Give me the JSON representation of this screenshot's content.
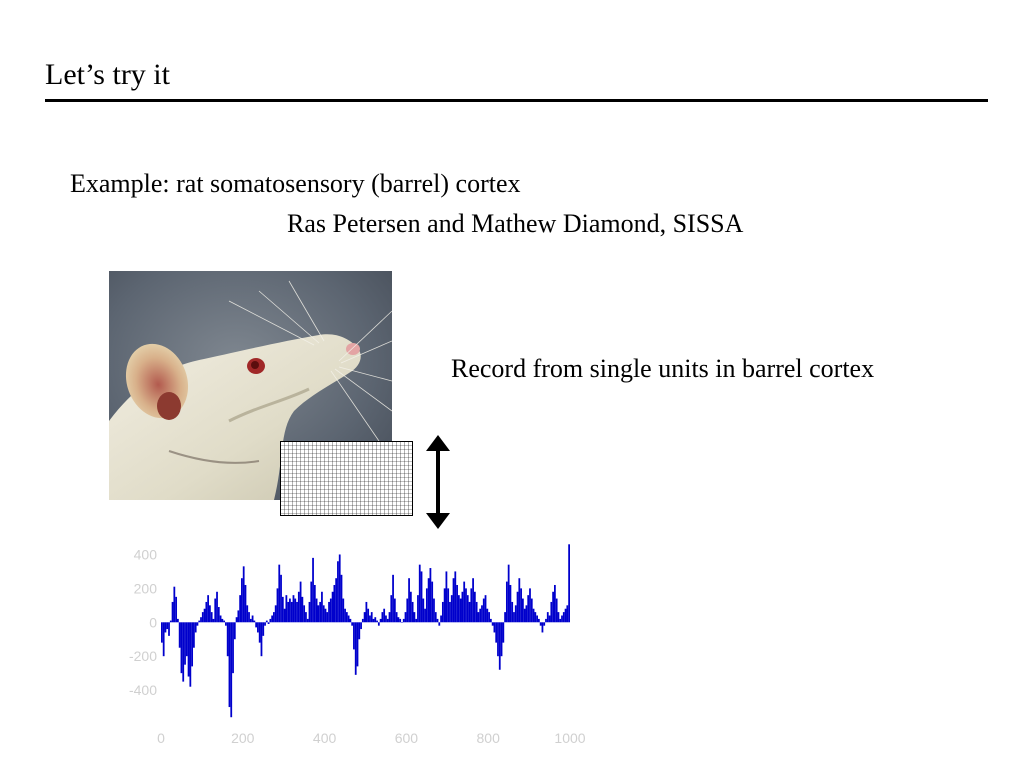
{
  "slide": {
    "title": "Let’s try it",
    "example": "Example: rat somatosensory (barrel) cortex",
    "credit": "Ras Petersen and Mathew Diamond, SISSA",
    "record_text": "Record from single units in barrel cortex"
  },
  "figure": {
    "photo_subject": "white rat head",
    "arrow_icon": "double-headed-vertical-arrow"
  },
  "colors": {
    "rule": "#000000",
    "bars": "#0000cc",
    "axis_text": "#d0d0d0"
  },
  "chart_data": {
    "type": "bar",
    "title": "",
    "xlabel": "",
    "ylabel": "",
    "xlim": [
      0,
      1000
    ],
    "ylim": [
      -600,
      450
    ],
    "x_ticks": [
      "0",
      "200",
      "400",
      "600",
      "800",
      "1000"
    ],
    "y_ticks": [
      "400",
      "200",
      "0",
      "-200",
      "-400"
    ],
    "y_tick_values": [
      400,
      200,
      0,
      -200,
      -400
    ],
    "series": [
      {
        "values": [
          -120,
          -200,
          -60,
          -40,
          -80,
          10,
          120,
          210,
          150,
          20,
          -150,
          -300,
          -350,
          -250,
          -200,
          -320,
          -380,
          -260,
          -150,
          -60,
          -20,
          10,
          30,
          60,
          80,
          120,
          160,
          100,
          60,
          20,
          140,
          180,
          90,
          40,
          20,
          10,
          -20,
          -200,
          -500,
          -560,
          -300,
          -100,
          30,
          70,
          160,
          260,
          330,
          220,
          100,
          60,
          20,
          40,
          10,
          -30,
          -60,
          -120,
          -200,
          -80,
          -20,
          10,
          -10,
          20,
          40,
          60,
          100,
          200,
          340,
          280,
          150,
          80,
          160,
          120,
          140,
          120,
          160,
          140,
          120,
          180,
          240,
          150,
          100,
          60,
          20,
          120,
          240,
          380,
          220,
          140,
          100,
          120,
          180,
          100,
          80,
          60,
          120,
          140,
          180,
          220,
          260,
          360,
          400,
          280,
          140,
          80,
          60,
          40,
          20,
          -20,
          -160,
          -310,
          -260,
          -100,
          -40,
          20,
          60,
          120,
          80,
          40,
          60,
          20,
          30,
          10,
          -20,
          20,
          60,
          80,
          40,
          20,
          60,
          160,
          280,
          140,
          60,
          30,
          20,
          0,
          20,
          60,
          140,
          260,
          180,
          120,
          60,
          20,
          160,
          340,
          300,
          140,
          80,
          200,
          260,
          320,
          240,
          140,
          60,
          20,
          -20,
          40,
          120,
          200,
          300,
          200,
          120,
          160,
          260,
          300,
          220,
          160,
          140,
          180,
          240,
          200,
          160,
          120,
          200,
          260,
          180,
          120,
          60,
          80,
          100,
          140,
          160,
          80,
          60,
          20,
          -20,
          -60,
          -120,
          -200,
          -280,
          -200,
          -120,
          60,
          240,
          340,
          220,
          120,
          60,
          100,
          180,
          260,
          200,
          140,
          80,
          100,
          160,
          200,
          140,
          80,
          60,
          40,
          20,
          -20,
          -60,
          -20,
          20,
          60,
          40,
          120,
          180,
          220,
          140,
          60,
          20,
          40,
          60,
          80,
          100,
          460
        ]
      }
    ],
    "grid": false,
    "legend": "none"
  }
}
